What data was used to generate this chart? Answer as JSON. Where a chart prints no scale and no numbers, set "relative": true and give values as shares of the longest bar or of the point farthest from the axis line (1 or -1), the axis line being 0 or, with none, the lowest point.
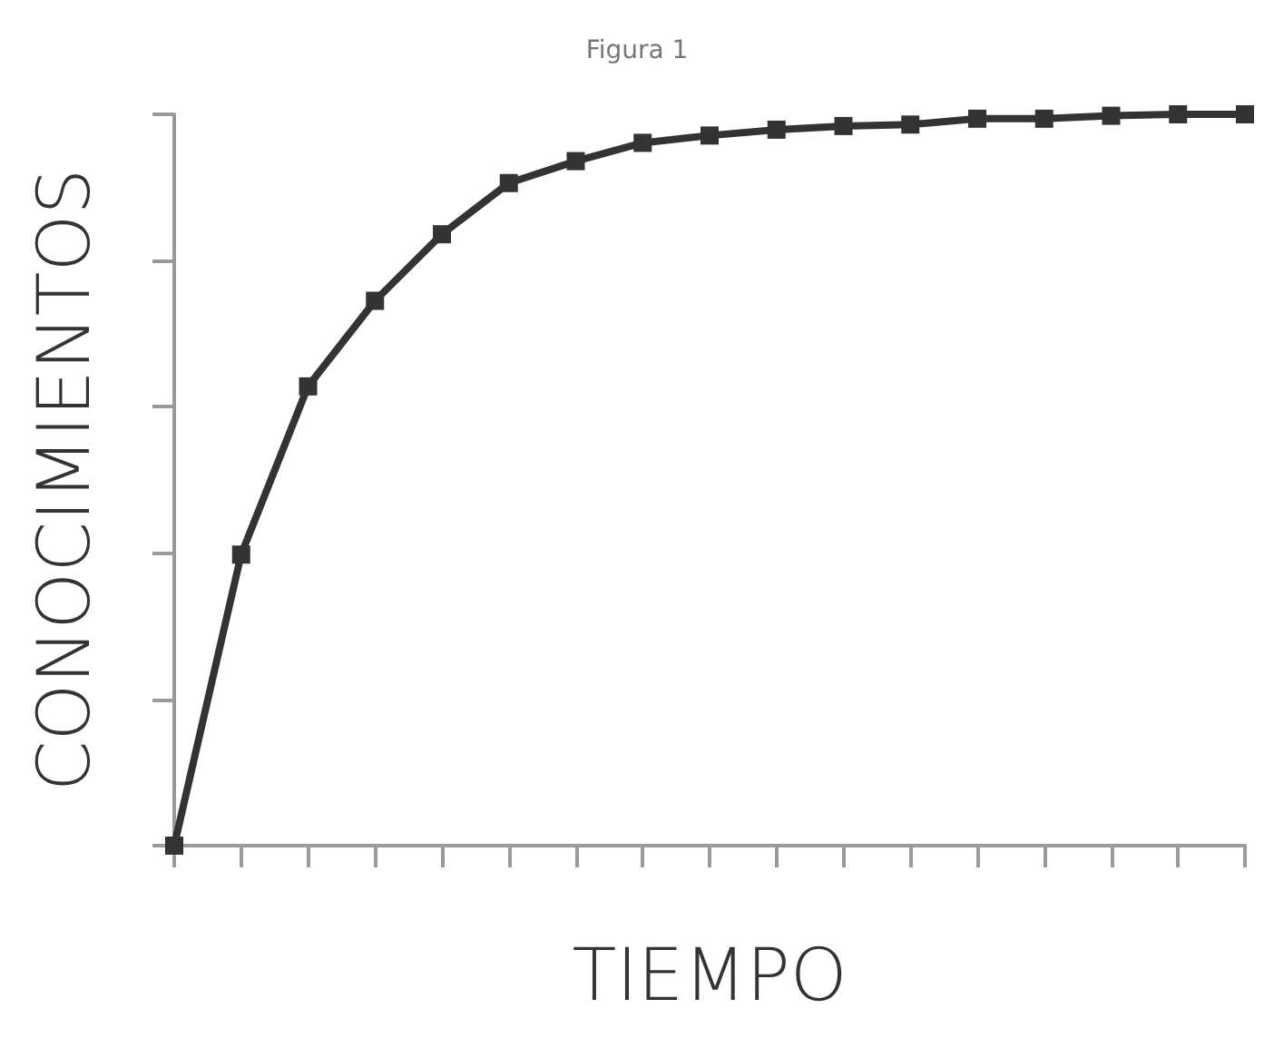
{
  "chart_data": {
    "type": "line",
    "title": "Figura 1",
    "xlabel": "TIEMPO",
    "ylabel": "CONOCIMIENTOS",
    "relative": true,
    "categories": [
      null,
      null,
      null,
      null,
      null,
      null,
      null,
      null,
      null,
      null,
      null,
      null,
      null,
      null,
      null,
      null,
      null
    ],
    "series": [
      {
        "color": "#333333",
        "values": [
          0,
          0.398,
          0.628,
          0.745,
          0.836,
          0.906,
          0.936,
          0.961,
          0.971,
          0.979,
          0.984,
          0.986,
          0.994,
          0.994,
          0.998,
          1,
          1
        ]
      }
    ],
    "marker": "square",
    "line_style": "solid",
    "grid": false
  }
}
